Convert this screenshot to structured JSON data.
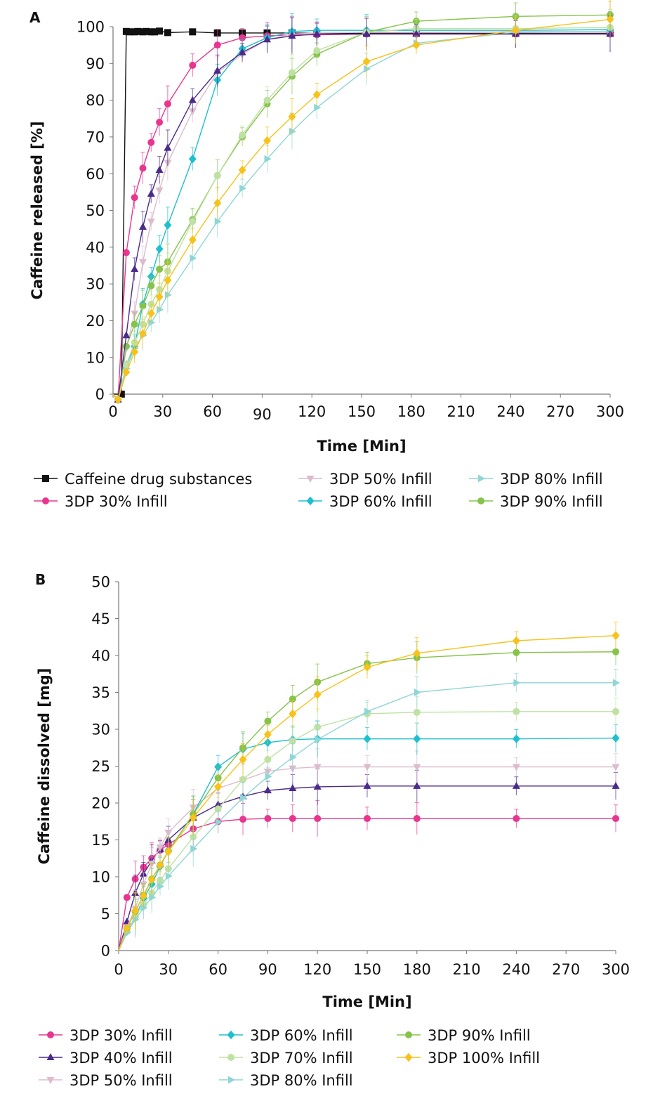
{
  "panels": {
    "a": {
      "label": "A"
    },
    "b": {
      "label": "B"
    }
  },
  "colors": {
    "Caffeine drug substances": "#111111",
    "3DP 30% Infill": "#e8368f",
    "3DP 40% Infill": "#4a2a8a",
    "3DP 50% Infill": "#dcbccc",
    "3DP 60% Infill": "#1ebfcf",
    "3DP 70% Infill": "#bfe1a3",
    "3DP 80% Infill": "#8fd6d6",
    "3DP 90% Infill": "#86c34a",
    "3DP 100% Infill": "#f7c21b"
  },
  "markers": {
    "Caffeine drug substances": "square",
    "3DP 30% Infill": "circle",
    "3DP 40% Infill": "triangle-up",
    "3DP 50% Infill": "triangle-down",
    "3DP 60% Infill": "diamond",
    "3DP 70% Infill": "circle",
    "3DP 80% Infill": "triangle-right",
    "3DP 90% Infill": "circle",
    "3DP 100% Infill": "diamond"
  },
  "chart_data": [
    {
      "panel": "A",
      "type": "line",
      "xlabel": "Time [Min]",
      "ylabel": "Caffeine released [%]",
      "xlim": [
        0,
        300
      ],
      "ylim": [
        0,
        100
      ],
      "xticks": [
        0,
        30,
        60,
        90,
        120,
        150,
        180,
        210,
        240,
        270,
        300
      ],
      "yticks": [
        0,
        10,
        20,
        30,
        40,
        50,
        60,
        70,
        80,
        90,
        100
      ],
      "grid": false,
      "legend_position": "bottom",
      "series": [
        {
          "name": "Caffeine drug substances",
          "x": [
            0,
            5,
            8,
            10,
            13,
            15,
            18,
            20,
            23,
            25,
            28,
            33,
            48,
            63,
            78,
            93,
            108,
            123,
            153,
            183,
            243,
            300
          ],
          "y": [
            0,
            0,
            98.7,
            98.6,
            98.6,
            98.7,
            98.6,
            98.7,
            98.6,
            98.6,
            98.8,
            98.4,
            98.6,
            98.3,
            98.3,
            98.3,
            98.3,
            98.2,
            98.2,
            98.2,
            98.2,
            98.2
          ]
        },
        {
          "name": "3DP 30% Infill",
          "x": [
            0,
            3,
            8,
            13,
            18,
            23,
            28,
            33,
            48,
            63,
            78,
            93,
            108,
            123,
            153,
            183,
            243,
            300
          ],
          "y": [
            0,
            -1.5,
            38.5,
            53.5,
            61.5,
            68.5,
            74,
            79,
            89.5,
            95,
            97,
            97.5,
            97.8,
            97.8,
            98,
            98,
            98,
            98
          ]
        },
        {
          "name": "3DP 50% Infill",
          "x": [
            0,
            3,
            8,
            13,
            18,
            23,
            28,
            33,
            48,
            63,
            78,
            93,
            108,
            123,
            153,
            183,
            243,
            300
          ],
          "y": [
            0,
            -1.5,
            12.5,
            22,
            36,
            47,
            55.5,
            63,
            77,
            87.5,
            92.5,
            96.5,
            98,
            98.3,
            98.5,
            98.5,
            98.7,
            98.7
          ]
        },
        {
          "name": "3DP 80% Infill",
          "x": [
            0,
            3,
            8,
            13,
            18,
            23,
            28,
            33,
            48,
            63,
            78,
            93,
            108,
            123,
            153,
            183,
            243,
            300
          ],
          "y": [
            0,
            -1.5,
            7,
            12.5,
            16,
            19.5,
            23,
            27,
            37,
            47,
            56,
            64,
            71.5,
            78,
            88.5,
            95.5,
            98.5,
            98.8
          ]
        },
        {
          "name": "3DP 60% Infill",
          "x": [
            0,
            3,
            8,
            13,
            18,
            23,
            28,
            33,
            48,
            63,
            78,
            93,
            108,
            123,
            153,
            183,
            243,
            300
          ],
          "y": [
            0,
            -1.5,
            8,
            13,
            24.5,
            32,
            39.5,
            46,
            64,
            85.5,
            94,
            97,
            98.7,
            99,
            99,
            99,
            99,
            99.2
          ]
        },
        {
          "name": "3DP 90% Infill",
          "x": [
            0,
            3,
            8,
            13,
            18,
            23,
            28,
            33,
            48,
            63,
            78,
            93,
            108,
            123,
            153,
            183,
            243,
            300
          ],
          "y": [
            0,
            -1.5,
            13,
            19,
            24,
            29.5,
            34,
            36,
            47.5,
            59.5,
            70,
            79,
            86.5,
            92.5,
            98.5,
            101.5,
            102.8,
            103.2
          ]
        },
        {
          "name": "3DP 70% Infill",
          "x": [
            0,
            3,
            8,
            13,
            18,
            23,
            28,
            33,
            48,
            63,
            78,
            93,
            108,
            123,
            153,
            183,
            243,
            300
          ],
          "y": [
            0,
            -1.5,
            8,
            14,
            19,
            24.5,
            28.5,
            33.5,
            47,
            59.5,
            70.5,
            80,
            87.5,
            93.5,
            98.5,
            99.5,
            99.5,
            99.8
          ]
        },
        {
          "name": "3DP 40% Infill",
          "x": [
            0,
            3,
            8,
            13,
            18,
            23,
            28,
            33,
            48,
            63,
            78,
            93,
            108,
            123,
            153,
            183,
            243,
            300
          ],
          "y": [
            0,
            -1.5,
            16,
            34,
            45.5,
            54.5,
            61,
            67,
            80,
            88,
            93,
            96.5,
            97.5,
            98,
            98,
            98,
            98,
            98
          ]
        },
        {
          "name": "3DP 100% Infill",
          "x": [
            0,
            3,
            8,
            13,
            18,
            23,
            28,
            33,
            48,
            63,
            78,
            93,
            108,
            123,
            153,
            183,
            243,
            300
          ],
          "y": [
            0,
            -1.5,
            6,
            11.5,
            16.5,
            22,
            26.5,
            31,
            42,
            52,
            61,
            69,
            75.5,
            81.5,
            90.5,
            95,
            99,
            102
          ]
        }
      ]
    },
    {
      "panel": "B",
      "type": "line",
      "xlabel": "Time [Min]",
      "ylabel": "Caffeine dissolved [mg]",
      "xlim": [
        0,
        300
      ],
      "ylim": [
        0,
        50
      ],
      "xticks": [
        0,
        30,
        60,
        90,
        120,
        150,
        180,
        210,
        240,
        270,
        300
      ],
      "yticks": [
        0,
        5,
        10,
        15,
        20,
        25,
        30,
        35,
        40,
        45,
        50
      ],
      "grid": false,
      "legend_position": "bottom",
      "series": [
        {
          "name": "3DP 30% Infill",
          "x": [
            0,
            5,
            10,
            15,
            20,
            25,
            30,
            45,
            60,
            75,
            90,
            105,
            120,
            150,
            180,
            240,
            300
          ],
          "y": [
            0,
            7.2,
            9.7,
            11.3,
            12.5,
            13.6,
            14.4,
            16.5,
            17.5,
            17.8,
            17.9,
            17.9,
            17.9,
            17.9,
            17.9,
            17.9,
            17.9
          ]
        },
        {
          "name": "3DP 40% Infill",
          "x": [
            0,
            5,
            10,
            15,
            20,
            25,
            30,
            45,
            60,
            75,
            90,
            105,
            120,
            150,
            180,
            240,
            300
          ],
          "y": [
            0,
            3.9,
            7.8,
            10.4,
            12.2,
            13.7,
            15,
            18,
            19.8,
            20.9,
            21.7,
            22,
            22.2,
            22.3,
            22.3,
            22.3,
            22.3
          ]
        },
        {
          "name": "3DP 50% Infill",
          "x": [
            0,
            5,
            10,
            15,
            20,
            25,
            30,
            45,
            60,
            75,
            90,
            105,
            120,
            150,
            180,
            240,
            300
          ],
          "y": [
            0,
            3.2,
            5.7,
            9,
            11.8,
            14,
            16,
            19.4,
            22,
            23.1,
            24.3,
            24.7,
            24.9,
            24.9,
            24.9,
            24.9,
            24.9
          ]
        },
        {
          "name": "3DP 60% Infill",
          "x": [
            0,
            5,
            10,
            15,
            20,
            25,
            30,
            45,
            60,
            75,
            90,
            105,
            120,
            150,
            180,
            240,
            300
          ],
          "y": [
            0,
            2.6,
            4.5,
            7.1,
            9,
            11.4,
            13.5,
            18.5,
            24.9,
            27.3,
            28.2,
            28.6,
            28.7,
            28.7,
            28.7,
            28.7,
            28.8
          ]
        },
        {
          "name": "3DP 70% Infill",
          "x": [
            0,
            5,
            10,
            15,
            20,
            25,
            30,
            45,
            60,
            75,
            90,
            105,
            120,
            150,
            180,
            240,
            300
          ],
          "y": [
            0,
            2.6,
            4.6,
            6.3,
            7.8,
            9.5,
            11.1,
            15.4,
            19.2,
            23.2,
            25.9,
            28.4,
            30.3,
            32.1,
            32.3,
            32.4,
            32.4
          ]
        },
        {
          "name": "3DP 80% Infill",
          "x": [
            0,
            5,
            10,
            15,
            20,
            25,
            30,
            45,
            60,
            75,
            90,
            105,
            120,
            150,
            180,
            240,
            300
          ],
          "y": [
            0,
            2.4,
            4.2,
            5.8,
            7.2,
            8.7,
            10.1,
            13.8,
            17.4,
            20.7,
            23.6,
            26.2,
            28.6,
            32.4,
            35,
            36.3,
            36.3
          ]
        },
        {
          "name": "3DP 90% Infill",
          "x": [
            0,
            5,
            10,
            15,
            20,
            25,
            30,
            45,
            60,
            75,
            90,
            105,
            120,
            150,
            180,
            240,
            300
          ],
          "y": [
            0,
            3,
            5.3,
            7.5,
            9.7,
            11.6,
            13.5,
            18.5,
            23.4,
            27.5,
            31.1,
            34.1,
            36.4,
            38.9,
            39.7,
            40.4,
            40.5
          ]
        },
        {
          "name": "3DP 100% Infill",
          "x": [
            0,
            5,
            10,
            15,
            20,
            25,
            30,
            45,
            60,
            75,
            90,
            105,
            120,
            150,
            180,
            240,
            300
          ],
          "y": [
            0,
            3,
            5.4,
            7.4,
            9.6,
            11.6,
            13.4,
            18,
            22.2,
            25.9,
            29.3,
            32.1,
            34.7,
            38.4,
            40.3,
            42,
            42.7
          ]
        }
      ]
    }
  ],
  "legends": {
    "a": [
      "Caffeine drug substances",
      "3DP 50% Infill",
      "3DP 80% Infill",
      "3DP 30% Infill",
      "3DP 60% Infill",
      "3DP 90% Infill"
    ],
    "b": [
      "3DP 30% Infill",
      "3DP 60% Infill",
      "3DP 90% Infill",
      "3DP 40% Infill",
      "3DP 70% Infill",
      "3DP 100% Infill",
      "3DP 50% Infill",
      "3DP 80% Infill"
    ]
  }
}
